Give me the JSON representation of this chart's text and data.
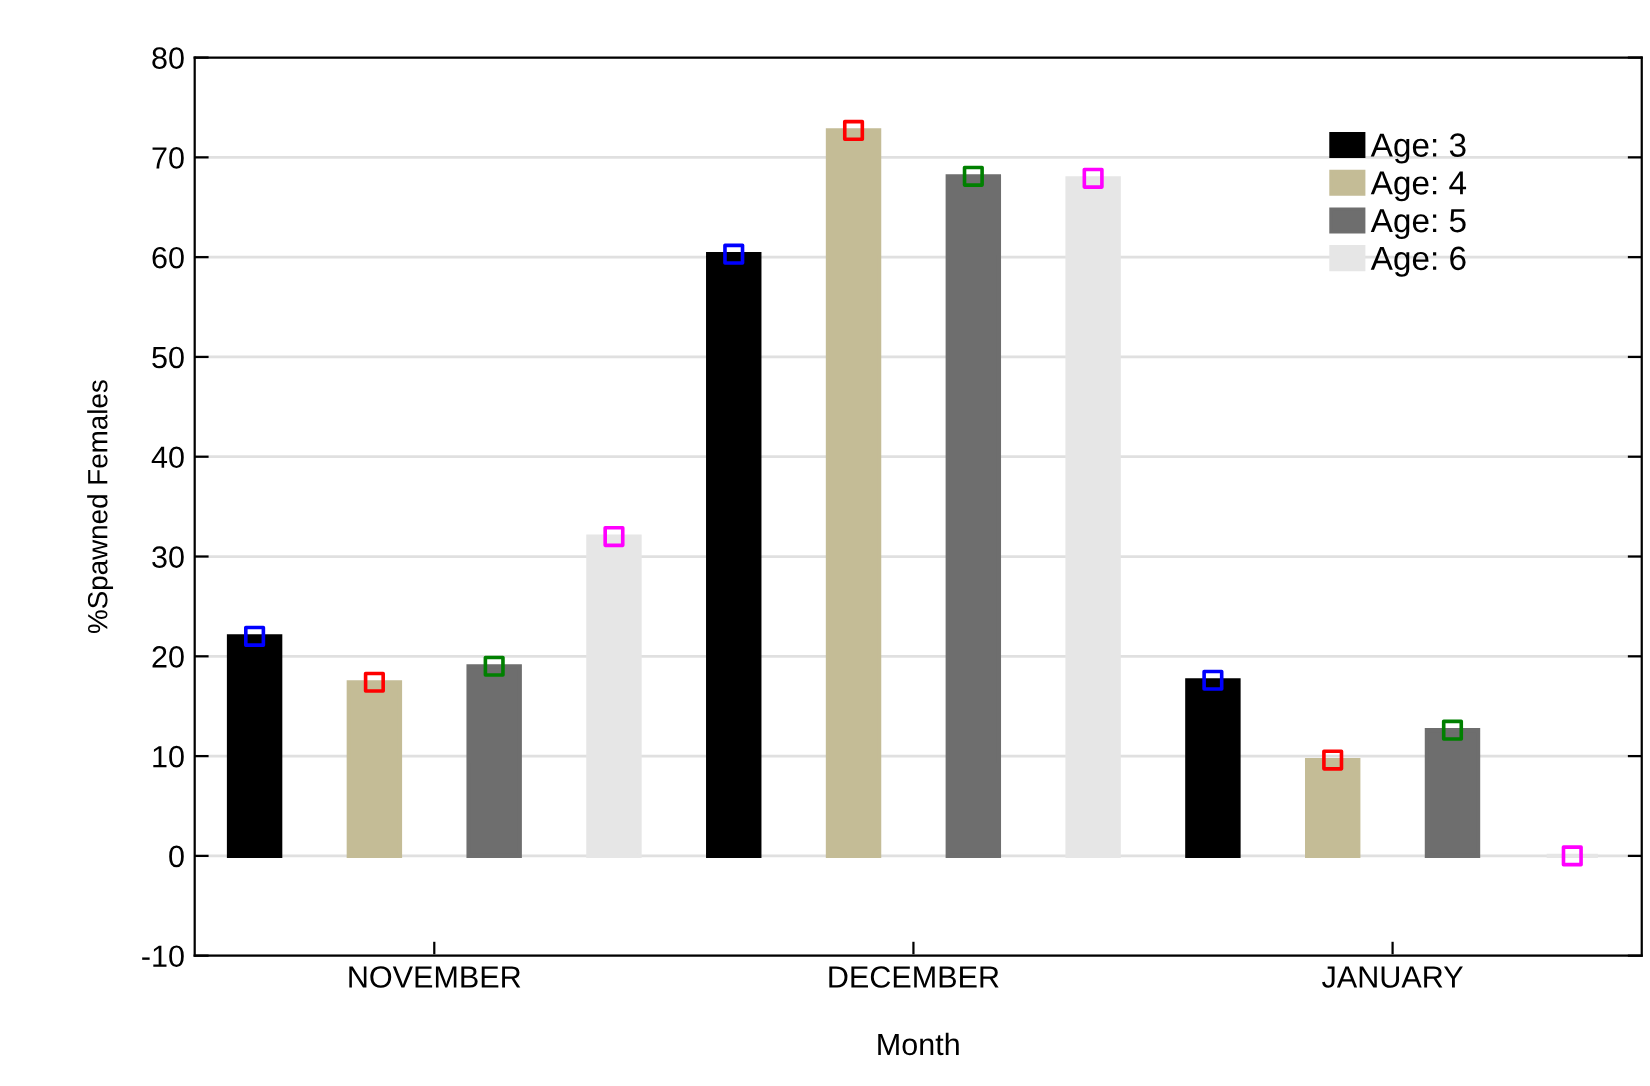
{
  "chart_data": {
    "type": "bar",
    "xlabel": "Month",
    "ylabel": "%Spawned Females",
    "categories": [
      "NOVEMBER",
      "DECEMBER",
      "JANUARY"
    ],
    "series": [
      {
        "name": "Age: 3",
        "color": "#000000",
        "values": [
          22.0,
          60.3,
          17.6
        ]
      },
      {
        "name": "Age: 4",
        "color": "#c4bc96",
        "values": [
          17.4,
          72.7,
          9.6
        ]
      },
      {
        "name": "Age: 5",
        "color": "#6e6e6e",
        "values": [
          19.0,
          68.1,
          12.6
        ]
      },
      {
        "name": "Age: 6",
        "color": "#e6e6e6",
        "values": [
          32.0,
          67.9,
          0.0
        ]
      },
      {
        "type": "scatter",
        "color": "#0000ff",
        "x": [
          "NOVEMBER",
          "DECEMBER",
          "JANUARY"
        ],
        "values": [
          22.0,
          60.3,
          17.6
        ]
      },
      {
        "type": "scatter",
        "color": "#ff0000",
        "x": [
          "NOVEMBER",
          "DECEMBER",
          "JANUARY"
        ],
        "values": [
          17.4,
          72.7,
          9.6
        ]
      },
      {
        "type": "scatter",
        "color": "#008000",
        "x": [
          "NOVEMBER",
          "DECEMBER",
          "JANUARY"
        ],
        "values": [
          19.0,
          68.1,
          12.6
        ]
      },
      {
        "type": "scatter",
        "color": "#ff00ff",
        "x": [
          "NOVEMBER",
          "DECEMBER",
          "JANUARY"
        ],
        "values": [
          32.0,
          67.9,
          0.0
        ]
      }
    ],
    "marker": "square",
    "ylim": [
      -10,
      80
    ],
    "yticks": [
      -10,
      0,
      10,
      20,
      30,
      40,
      50,
      60,
      70,
      80
    ],
    "grid": "y",
    "legend": "top right"
  }
}
